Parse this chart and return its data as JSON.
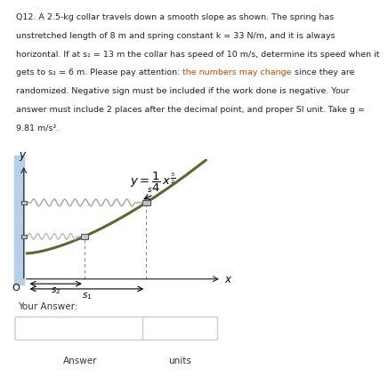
{
  "bg_color": "#ffffff",
  "curve_color": "#556b2f",
  "wall_color": "#b8cfe8",
  "spring_top_color": "#c0c0c0",
  "spring_bot_color": "#c0c0c0",
  "collar_color": "#b0b0b0",
  "collar_edge": "#666666",
  "highlight_color": "#cc4400",
  "text_color": "#222222",
  "axis_color": "#333333",
  "lines": [
    "Q12. A 2.5-kg collar travels down a smooth slope as shown. The spring has",
    "unstretched length of 8 m and spring constant k = 33 N/m, and it is always",
    "horizontal. If at s₁ = 13 m the collar has speed of 10 m/s, determine its speed when it",
    "gets to s₂ = 6 m. Please pay attention: |the numbers may change| since they are",
    "randomized. Negative sign must be included if the work done is negative. Your",
    "answer must include 2 places after the decimal point, and proper SI unit. Take g =",
    "9.81 m/s²."
  ],
  "font_size": 6.8,
  "your_answer": "Your Answer:",
  "answer_label": "Answer",
  "units_label": "units"
}
